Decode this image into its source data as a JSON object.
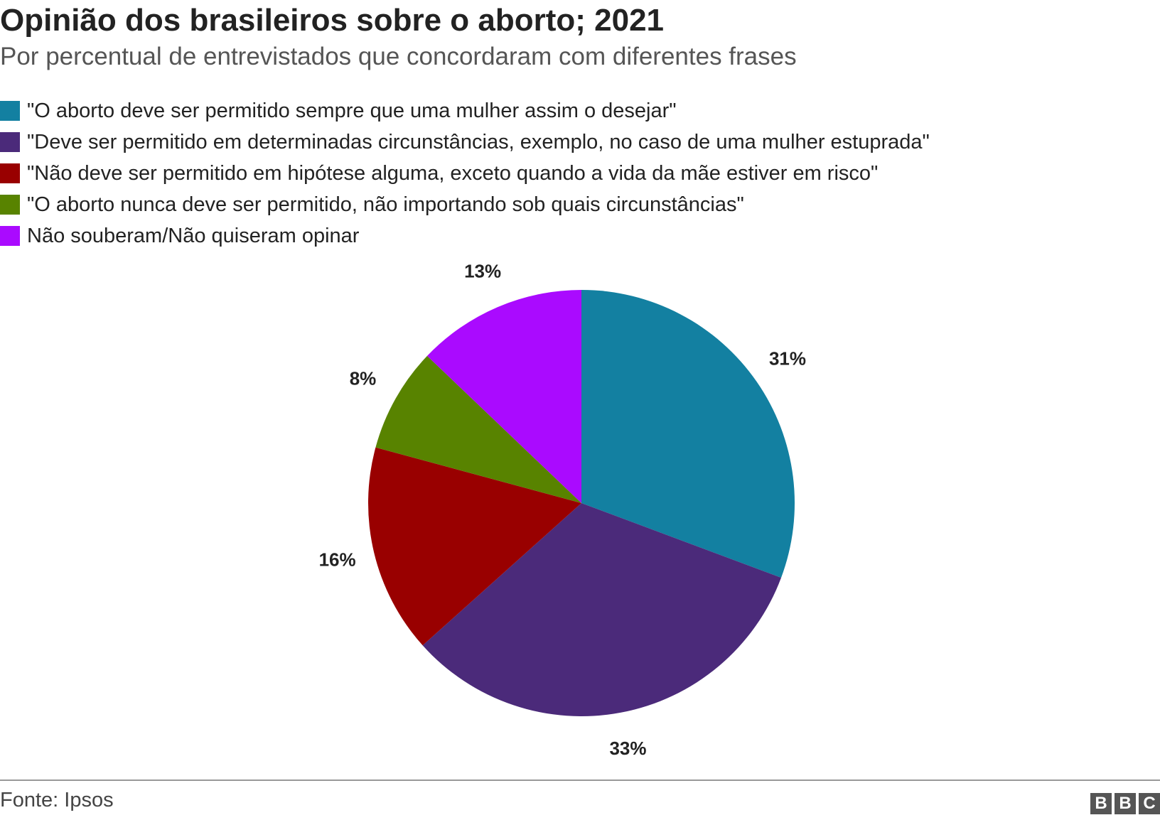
{
  "title": "Opinião dos brasileiros sobre o aborto; 2021",
  "subtitle": "Por percentual de entrevistados que concordaram com diferentes frases",
  "chart_data": {
    "type": "pie",
    "series": [
      {
        "name": "\"O aborto deve ser permitido sempre que uma mulher assim o desejar\"",
        "value": 31,
        "label": "31%",
        "color": "#1380a1"
      },
      {
        "name": "\"Deve ser permitido em determinadas circunstâncias, exemplo, no caso de uma mulher estuprada\"",
        "value": 33,
        "label": "33%",
        "color": "#4b2a7a"
      },
      {
        "name": "\"Não deve ser permitido em hipótese alguma, exceto quando a vida da mãe estiver em risco\"",
        "value": 16,
        "label": "16%",
        "color": "#990000"
      },
      {
        "name": "\"O aborto nunca deve ser permitido, não importando sob quais circunstâncias\"",
        "value": 8,
        "label": "8%",
        "color": "#588300"
      },
      {
        "name": "Não souberam/Não quiseram opinar",
        "value": 13,
        "label": "13%",
        "color": "#aa0aff"
      }
    ],
    "legend_position": "top-left"
  },
  "source": "Fonte: Ipsos",
  "logo": [
    "B",
    "B",
    "C"
  ]
}
